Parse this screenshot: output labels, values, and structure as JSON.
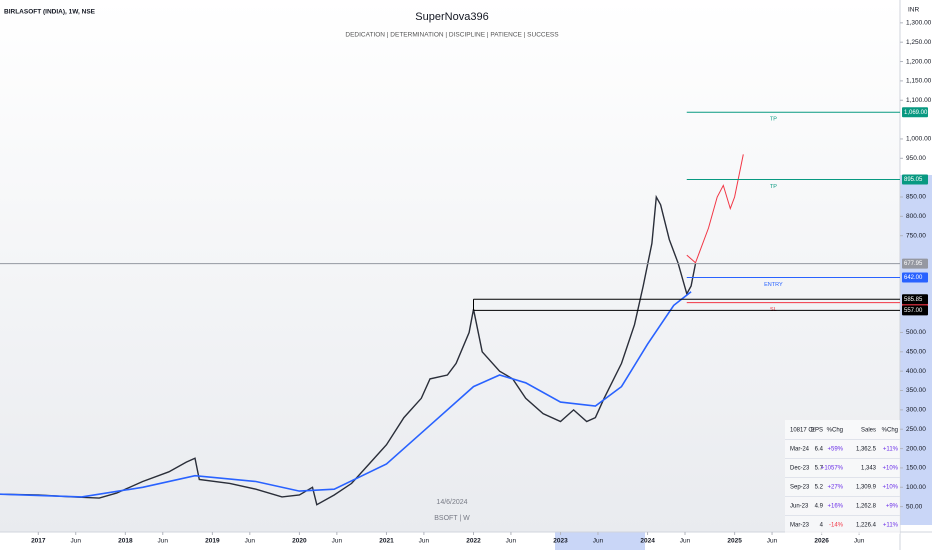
{
  "chart_data": {
    "type": "line",
    "symbol": "BIRLASOFT (INDIA), 1W, NSE",
    "title": "SuperNova396",
    "subtitle": "DEDICATION | DETERMINATION | DISCIPLINE | PATIENCE | SUCCESS",
    "currency": "INR",
    "watermark_date": "14/6/2024",
    "watermark_symbol": "BSOFT | W",
    "xlim": [
      2016.56,
      2026.9
    ],
    "ylim": [
      -13,
      1359
    ],
    "xticks": [
      {
        "value": 2017,
        "label": "2017"
      },
      {
        "value": 2017.43,
        "label": "Jun"
      },
      {
        "value": 2018,
        "label": "2018"
      },
      {
        "value": 2018.43,
        "label": "Jun"
      },
      {
        "value": 2019,
        "label": "2019"
      },
      {
        "value": 2019.43,
        "label": "Jun"
      },
      {
        "value": 2020,
        "label": "2020"
      },
      {
        "value": 2020.43,
        "label": "Jun"
      },
      {
        "value": 2021,
        "label": "2021"
      },
      {
        "value": 2021.43,
        "label": "Jun"
      },
      {
        "value": 2022,
        "label": "2022"
      },
      {
        "value": 2022.43,
        "label": "Jun"
      },
      {
        "value": 2023,
        "label": "2023"
      },
      {
        "value": 2023.43,
        "label": "Jun"
      },
      {
        "value": 2024,
        "label": "2024"
      },
      {
        "value": 2024.43,
        "label": "Jun"
      },
      {
        "value": 2025,
        "label": "2025"
      },
      {
        "value": 2025.43,
        "label": "Jun"
      },
      {
        "value": 2026,
        "label": "2026"
      },
      {
        "value": 2026.43,
        "label": "Jun"
      }
    ],
    "yticks": [
      {
        "value": 50,
        "label": "50.00"
      },
      {
        "value": 100,
        "label": "100.00"
      },
      {
        "value": 150,
        "label": "150.00"
      },
      {
        "value": 200,
        "label": "200.00"
      },
      {
        "value": 250,
        "label": "250.00"
      },
      {
        "value": 300,
        "label": "300.00"
      },
      {
        "value": 350,
        "label": "350.00"
      },
      {
        "value": 400,
        "label": "400.00"
      },
      {
        "value": 450,
        "label": "450.00"
      },
      {
        "value": 500,
        "label": "500.00"
      },
      {
        "value": 750,
        "label": "750.00"
      },
      {
        "value": 800,
        "label": "800.00"
      },
      {
        "value": 850,
        "label": "850.00"
      },
      {
        "value": 950,
        "label": "950.00"
      },
      {
        "value": 1000,
        "label": "1,000.00"
      },
      {
        "value": 1100,
        "label": "1,100.00"
      },
      {
        "value": 1150,
        "label": "1,150.00"
      },
      {
        "value": 1200,
        "label": "1,200.00"
      },
      {
        "value": 1250,
        "label": "1,250.00"
      },
      {
        "value": 1300,
        "label": "1,300.00"
      }
    ],
    "series": [
      {
        "color": "#2a2e39",
        "width": 1.4,
        "x": [
          2016.56,
          2017.0,
          2017.4,
          2017.7,
          2017.9,
          2018.2,
          2018.5,
          2018.7,
          2018.8,
          2018.85,
          2019.2,
          2019.5,
          2019.8,
          2020.0,
          2020.15,
          2020.2,
          2020.4,
          2020.6,
          2020.8,
          2021.0,
          2021.2,
          2021.4,
          2021.5,
          2021.7,
          2021.8,
          2021.95,
          2022.0,
          2022.1,
          2022.3,
          2022.45,
          2022.6,
          2022.8,
          2023.0,
          2023.15,
          2023.3,
          2023.4,
          2023.5,
          2023.7,
          2023.85,
          2023.95,
          2024.05,
          2024.1,
          2024.15,
          2024.25,
          2024.35,
          2024.45,
          2024.5,
          2024.55
        ],
        "values": [
          82,
          80,
          75,
          72,
          85,
          115,
          140,
          165,
          175,
          120,
          110,
          95,
          75,
          80,
          100,
          55,
          80,
          110,
          160,
          210,
          280,
          330,
          380,
          390,
          420,
          500,
          560,
          450,
          400,
          380,
          330,
          290,
          270,
          300,
          270,
          280,
          330,
          420,
          520,
          620,
          730,
          850,
          830,
          740,
          680,
          600,
          620,
          678
        ]
      },
      {
        "color": "#2962ff",
        "width": 1.6,
        "x": [
          2016.56,
          2017.5,
          2018.2,
          2018.8,
          2019.5,
          2020.0,
          2020.4,
          2021.0,
          2021.5,
          2022.0,
          2022.3,
          2022.6,
          2023.0,
          2023.4,
          2023.7,
          2024.0,
          2024.3,
          2024.5
        ],
        "values": [
          82,
          75,
          100,
          130,
          115,
          90,
          95,
          160,
          260,
          360,
          390,
          370,
          320,
          310,
          360,
          470,
          570,
          605
        ]
      },
      {
        "color": "#f23645",
        "width": 1,
        "x": [
          2024.45,
          2024.55,
          2024.7,
          2024.8,
          2024.87,
          2024.95,
          2025.0,
          2025.1
        ],
        "values": [
          700,
          680,
          770,
          850,
          880,
          820,
          850,
          960
        ]
      }
    ],
    "levels": [
      {
        "label": "TP",
        "value": 1069,
        "value_label": "1,069.00",
        "color": "#089981",
        "from": 2024.45
      },
      {
        "label": "TP",
        "value": 895.05,
        "value_label": "895.05",
        "color": "#089981",
        "from": 2024.45
      },
      {
        "label": "ENTRY",
        "value": 642,
        "value_label": "642.00",
        "color": "#2962ff",
        "from": 2024.45
      },
      {
        "label": "SL",
        "value": 577,
        "value_label": "577.00",
        "color": "#f23645",
        "from": 2024.45
      },
      {
        "value": 585.85,
        "value_label": "585.85",
        "color": "#000000",
        "from": 2022.0
      },
      {
        "value": 557,
        "value_label": "557.00",
        "color": "#000000",
        "from": 2022.0
      },
      {
        "value": 677.95,
        "value_label": "677.95",
        "color": "#9598a1",
        "from": 2016.56
      }
    ],
    "financials": {
      "header": [
        "10817 Cr",
        "EPS",
        "%Chg",
        "Sales",
        "%Chg"
      ],
      "rows": [
        [
          "Mar-24",
          "6.4",
          "+59%",
          "1,362.5",
          "+11%"
        ],
        [
          "Dec-23",
          "5.7",
          "+1057%",
          "1,343",
          "+10%"
        ],
        [
          "Sep-23",
          "5.2",
          "+27%",
          "1,309.9",
          "+10%"
        ],
        [
          "Jun-23",
          "4.9",
          "+16%",
          "1,262.8",
          "+9%"
        ],
        [
          "Mar-23",
          "4",
          "-14%",
          "1,226.4",
          "+11%"
        ]
      ]
    }
  }
}
